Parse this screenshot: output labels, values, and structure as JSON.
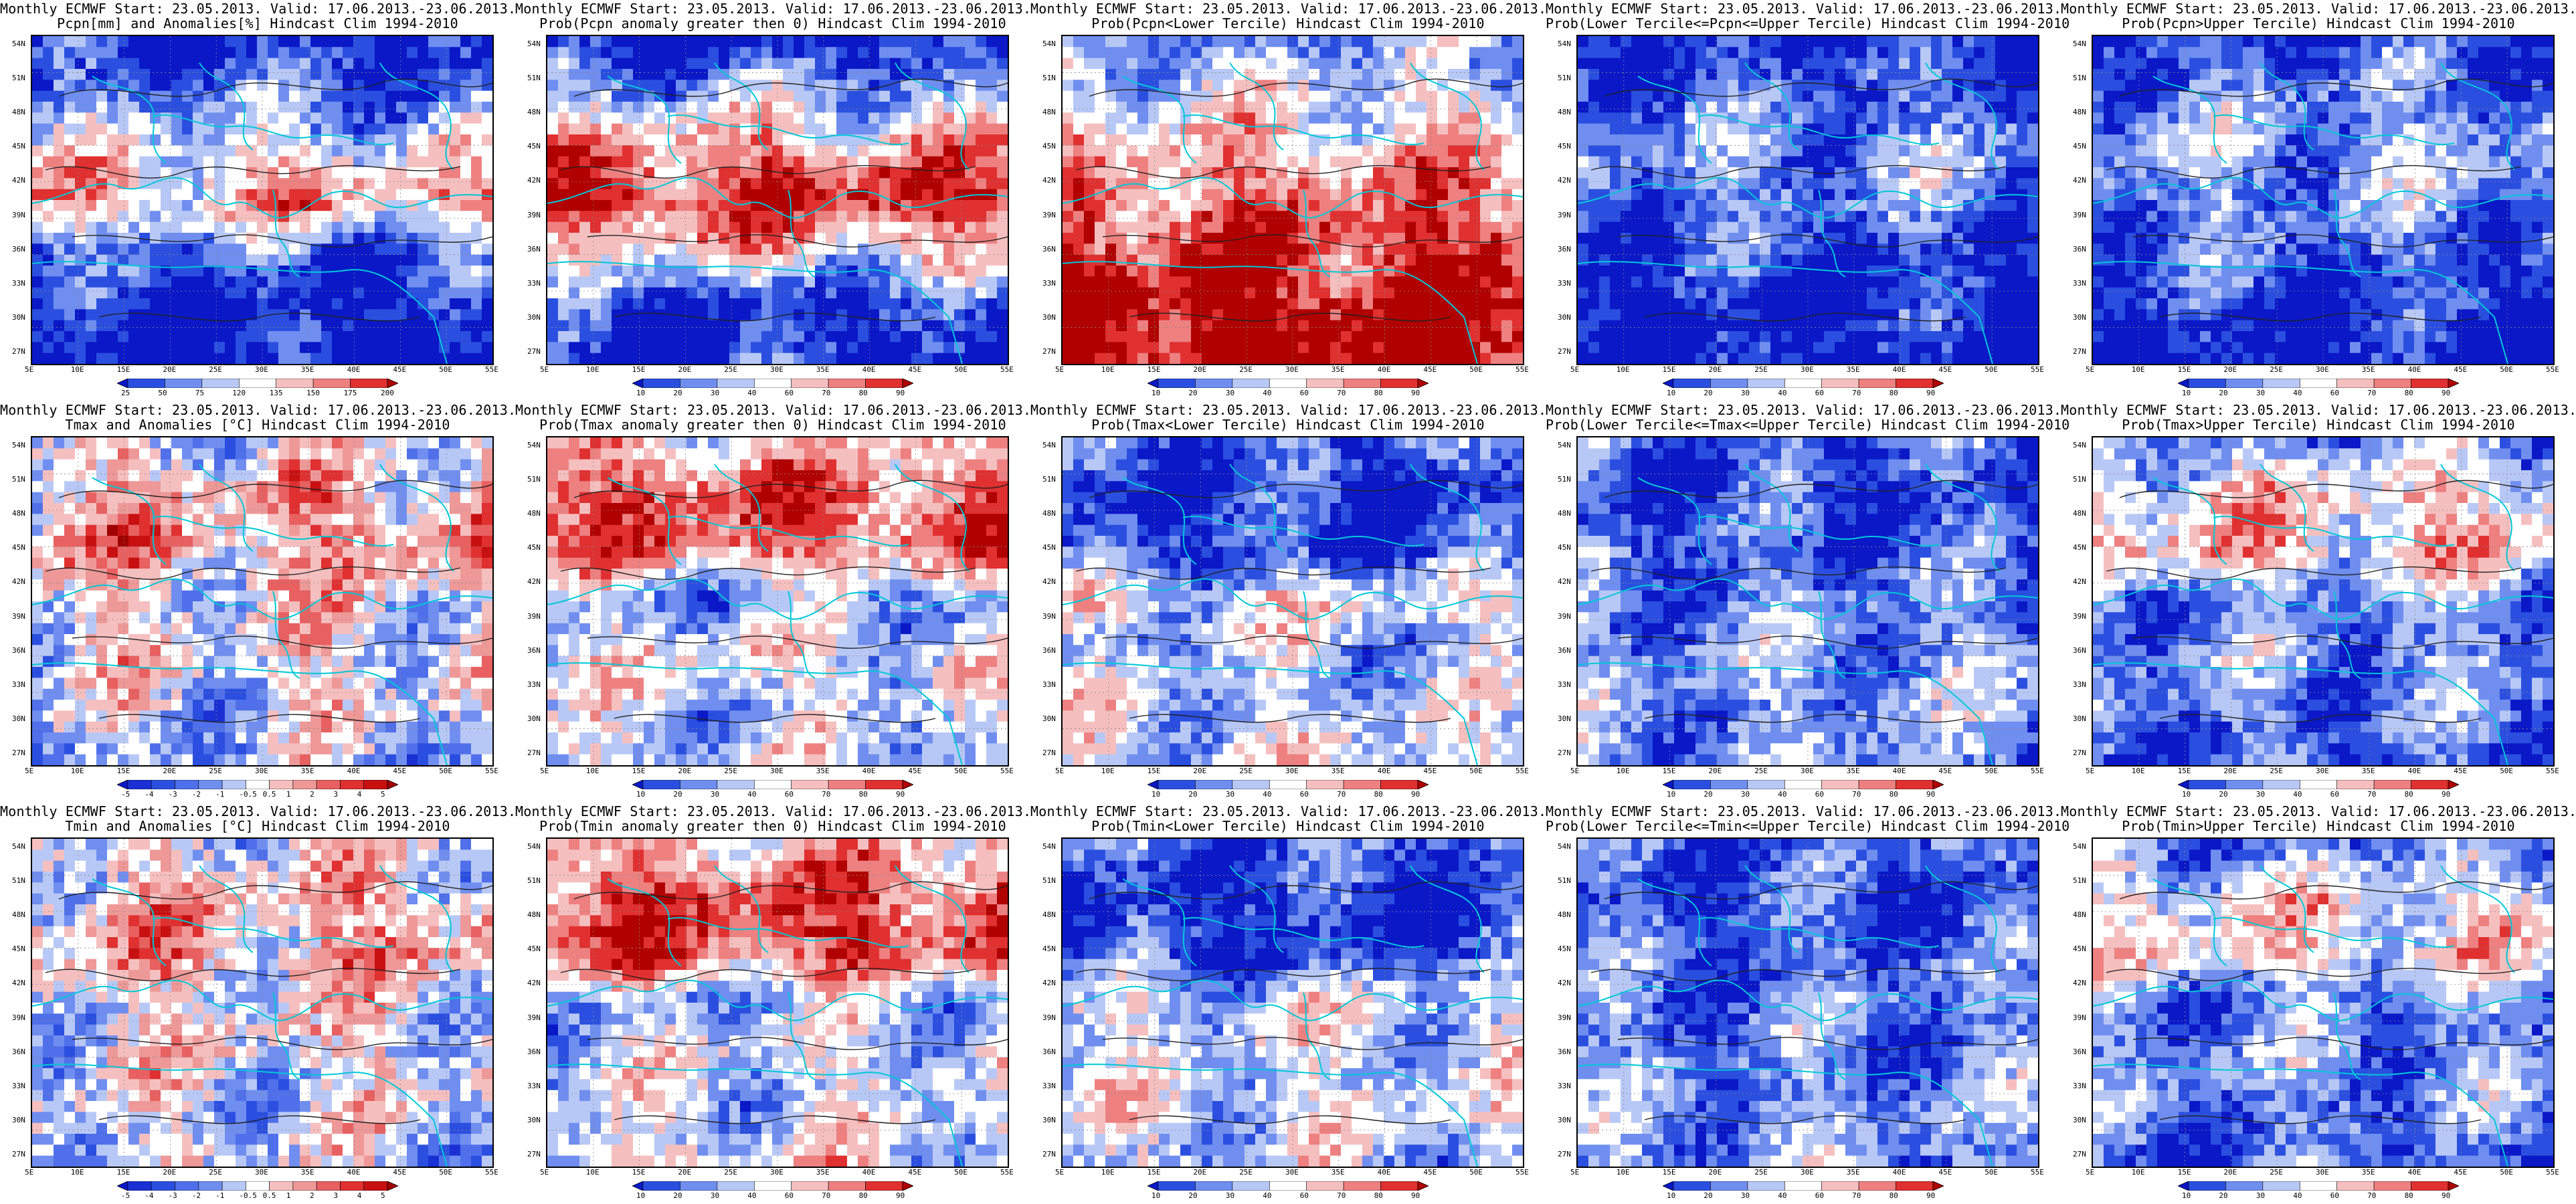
{
  "lat_labels": [
    "54N",
    "51N",
    "48N",
    "45N",
    "42N",
    "39N",
    "36N",
    "33N",
    "30N",
    "27N"
  ],
  "lon_labels": [
    "5E",
    "10E",
    "15E",
    "20E",
    "25E",
    "30E",
    "35E",
    "40E",
    "45E",
    "50E",
    "55E"
  ],
  "scales": {
    "anom_pct": {
      "labels": [
        "25",
        "50",
        "75",
        "120",
        "135",
        "150",
        "175",
        "200"
      ],
      "colors": [
        "#0a18c8",
        "#2a4fe0",
        "#6f8ef0",
        "#b8c8f6",
        "#ffffff",
        "#f6bfbf",
        "#ee8080",
        "#e03030",
        "#b00000"
      ]
    },
    "prob": {
      "labels": [
        "10",
        "20",
        "30",
        "40",
        "60",
        "70",
        "80",
        "90"
      ],
      "colors": [
        "#0a18c8",
        "#2a4fe0",
        "#6f8ef0",
        "#b8c8f6",
        "#ffffff",
        "#f6bfbf",
        "#ee8080",
        "#e03030",
        "#b00000"
      ]
    },
    "anom_deg": {
      "labels": [
        "-5",
        "-4",
        "-3",
        "-2",
        "-1",
        "-0.5",
        "0.5",
        "1",
        "2",
        "3",
        "4",
        "5"
      ],
      "colors": [
        "#0a18c8",
        "#1a30d4",
        "#2a4fe0",
        "#4f70ea",
        "#6f8ef0",
        "#b8c8f6",
        "#ffffff",
        "#f6bfbf",
        "#ee9898",
        "#e86060",
        "#e03030",
        "#c81010",
        "#a00000"
      ]
    }
  },
  "panels": [
    {
      "id": "pcpn-anomaly",
      "line1": "Monthly ECMWF Start: 23.05.2013. Valid: 17.06.2013.-23.06.2013.",
      "line2": "Pcpn[mm] and Anomalies[%] Hindcast Clim 1994-2010",
      "scale": "anom_pct",
      "kind": "pcpn",
      "mix": [
        0.05,
        0.25,
        0.45,
        0.65,
        0.2,
        0.05,
        0.02
      ]
    },
    {
      "id": "pcpn-prob-positive",
      "line1": "Monthly ECMWF Start: 23.05.2013. Valid: 17.06.2013.-23.06.2013.",
      "line2": "Prob(Pcpn anomaly greater then 0) Hindcast Clim 1994-2010",
      "scale": "prob",
      "kind": "pcpn",
      "mix": [
        0.05,
        0.35,
        0.65,
        0.9,
        0.55,
        0.1,
        0.1
      ]
    },
    {
      "id": "pcpn-prob-lower",
      "line1": "Monthly ECMWF Start: 23.05.2013. Valid: 17.06.2013.-23.06.2013.",
      "line2": "Prob(Pcpn<Lower Tercile) Hindcast Clim 1994-2010",
      "scale": "prob",
      "kind": "pcpn",
      "mix": [
        0.3,
        0.45,
        0.6,
        0.75,
        0.85,
        0.95,
        0.97
      ]
    },
    {
      "id": "pcpn-prob-middle",
      "line1": "Monthly ECMWF Start: 23.05.2013. Valid: 17.06.2013.-23.06.2013.",
      "line2": "Prob(Lower Tercile<=Pcpn<=Upper Tercile) Hindcast Clim 1994-2010",
      "scale": "prob",
      "kind": "pcpn",
      "mix": [
        0.1,
        0.2,
        0.3,
        0.25,
        0.15,
        0.05,
        0.05
      ]
    },
    {
      "id": "pcpn-prob-upper",
      "line1": "Monthly ECMWF Start: 23.05.2013. Valid: 17.06.2013.-23.06.2013.",
      "line2": "Prob(Pcpn>Upper Tercile) Hindcast Clim 1994-2010",
      "scale": "prob",
      "kind": "pcpn",
      "mix": [
        0.15,
        0.25,
        0.35,
        0.3,
        0.2,
        0.1,
        0.05
      ]
    },
    {
      "id": "tmax-anomaly",
      "line1": "Monthly ECMWF Start: 23.05.2013. Valid: 17.06.2013.-23.06.2013.",
      "line2": "Tmax and Anomalies [°C] Hindcast Clim 1994-2010",
      "scale": "anom_deg",
      "kind": "temp",
      "mix": [
        0.45,
        0.6,
        0.65,
        0.5,
        0.5,
        0.45,
        0.4
      ]
    },
    {
      "id": "tmax-prob-positive",
      "line1": "Monthly ECMWF Start: 23.05.2013. Valid: 17.06.2013.-23.06.2013.",
      "line2": "Prob(Tmax anomaly greater then 0) Hindcast Clim 1994-2010",
      "scale": "prob",
      "kind": "temp",
      "mix": [
        0.55,
        0.8,
        0.75,
        0.3,
        0.5,
        0.4,
        0.4
      ]
    },
    {
      "id": "tmax-prob-lower",
      "line1": "Monthly ECMWF Start: 23.05.2013. Valid: 17.06.2013.-23.06.2013.",
      "line2": "Prob(Tmax<Lower Tercile) Hindcast Clim 1994-2010",
      "scale": "prob",
      "kind": "temp",
      "mix": [
        0.2,
        0.1,
        0.15,
        0.5,
        0.35,
        0.4,
        0.45
      ]
    },
    {
      "id": "tmax-prob-middle",
      "line1": "Monthly ECMWF Start: 23.05.2013. Valid: 17.06.2013.-23.06.2013.",
      "line2": "Prob(Lower Tercile<=Tmax<=Upper Tercile) Hindcast Clim 1994-2010",
      "scale": "prob",
      "kind": "temp",
      "mix": [
        0.2,
        0.15,
        0.2,
        0.25,
        0.3,
        0.3,
        0.3
      ]
    },
    {
      "id": "tmax-prob-upper",
      "line1": "Monthly ECMWF Start: 23.05.2013. Valid: 17.06.2013.-23.06.2013.",
      "line2": "Prob(Tmax>Upper Tercile) Hindcast Clim 1994-2010",
      "scale": "prob",
      "kind": "temp",
      "mix": [
        0.3,
        0.55,
        0.6,
        0.25,
        0.3,
        0.25,
        0.2
      ]
    },
    {
      "id": "tmin-anomaly",
      "line1": "Monthly ECMWF Start: 23.05.2013. Valid: 17.06.2013.-23.06.2013.",
      "line2": "Tmin and Anomalies [°C] Hindcast Clim 1994-2010",
      "scale": "anom_deg",
      "kind": "temp",
      "mix": [
        0.5,
        0.58,
        0.62,
        0.5,
        0.5,
        0.45,
        0.45
      ]
    },
    {
      "id": "tmin-prob-positive",
      "line1": "Monthly ECMWF Start: 23.05.2013. Valid: 17.06.2013.-23.06.2013.",
      "line2": "Prob(Tmin anomaly greater then 0) Hindcast Clim 1994-2010",
      "scale": "prob",
      "kind": "temp",
      "mix": [
        0.6,
        0.8,
        0.8,
        0.35,
        0.45,
        0.4,
        0.5
      ]
    },
    {
      "id": "tmin-prob-lower",
      "line1": "Monthly ECMWF Start: 23.05.2013. Valid: 17.06.2013.-23.06.2013.",
      "line2": "Prob(Tmin<Lower Tercile) Hindcast Clim 1994-2010",
      "scale": "prob",
      "kind": "temp",
      "mix": [
        0.2,
        0.1,
        0.12,
        0.45,
        0.4,
        0.45,
        0.4
      ]
    },
    {
      "id": "tmin-prob-middle",
      "line1": "Monthly ECMWF Start: 23.05.2013. Valid: 17.06.2013.-23.06.2013.",
      "line2": "Prob(Lower Tercile<=Tmin<=Upper Tercile) Hindcast Clim 1994-2010",
      "scale": "prob",
      "kind": "temp",
      "mix": [
        0.2,
        0.15,
        0.2,
        0.25,
        0.25,
        0.3,
        0.3
      ]
    },
    {
      "id": "tmin-prob-upper",
      "line1": "Monthly ECMWF Start: 23.05.2013. Valid: 17.06.2013.-23.06.2013.",
      "line2": "Prob(Tmin>Upper Tercile) Hindcast Clim 1994-2010",
      "scale": "prob",
      "kind": "temp",
      "mix": [
        0.25,
        0.5,
        0.55,
        0.25,
        0.3,
        0.25,
        0.2
      ]
    }
  ]
}
